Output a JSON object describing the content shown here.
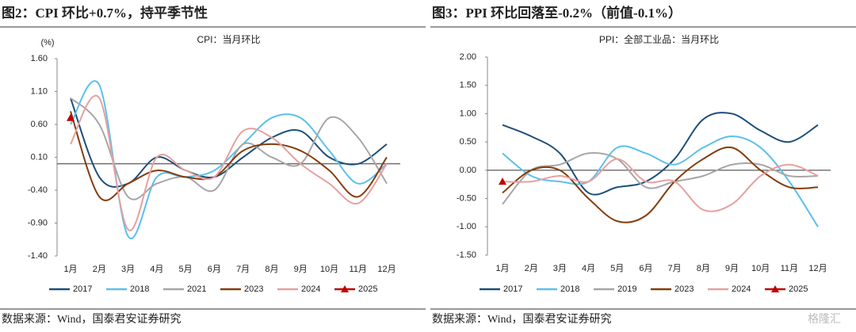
{
  "chart_data": [
    {
      "type": "line",
      "title": "图2：CPI 环比+0.7%，持平季节性",
      "subtitle": "CPI：当月环比",
      "y_label": "(%)",
      "categories": [
        "1月",
        "2月",
        "3月",
        "4月",
        "5月",
        "6月",
        "7月",
        "8月",
        "9月",
        "10月",
        "11月",
        "12月"
      ],
      "ylim": [
        -1.4,
        1.6
      ],
      "yticks": [
        {
          "value": -1.4,
          "label": "-1.40"
        },
        {
          "value": -0.9,
          "label": "-0.90"
        },
        {
          "value": -0.4,
          "label": "-0.40"
        },
        {
          "value": 0.1,
          "label": "0.10"
        },
        {
          "value": 0.6,
          "label": "0.60"
        },
        {
          "value": 1.1,
          "label": "1.10"
        },
        {
          "value": 1.6,
          "label": "1.60"
        }
      ],
      "series": [
        {
          "name": "2017",
          "color": "#1f4e79",
          "values": [
            1.0,
            -0.2,
            -0.3,
            0.1,
            -0.1,
            -0.2,
            0.1,
            0.4,
            0.5,
            0.1,
            0.0,
            0.3
          ]
        },
        {
          "name": "2018",
          "color": "#5bc0eb",
          "values": [
            0.6,
            1.2,
            -1.1,
            -0.2,
            -0.2,
            -0.1,
            0.3,
            0.7,
            0.7,
            0.2,
            -0.3,
            0.0
          ]
        },
        {
          "name": "2021",
          "color": "#a6a6a6",
          "values": [
            1.0,
            0.6,
            -0.5,
            -0.3,
            -0.2,
            -0.4,
            0.3,
            0.1,
            0.0,
            0.7,
            0.4,
            -0.3
          ]
        },
        {
          "name": "2023",
          "color": "#843c0c",
          "values": [
            0.8,
            -0.5,
            -0.3,
            -0.1,
            -0.2,
            -0.2,
            0.2,
            0.3,
            0.2,
            -0.1,
            -0.5,
            0.1
          ]
        },
        {
          "name": "2024",
          "color": "#e6a0a0",
          "values": [
            0.3,
            1.0,
            -1.0,
            0.1,
            -0.1,
            -0.2,
            0.5,
            0.4,
            0.0,
            -0.3,
            -0.6,
            0.0
          ]
        },
        {
          "name": "2025",
          "color": "#c00000",
          "marker": "triangle",
          "values": [
            0.7,
            null,
            null,
            null,
            null,
            null,
            null,
            null,
            null,
            null,
            null,
            null
          ]
        }
      ],
      "source": "数据来源：Wind，国泰君安证券研究"
    },
    {
      "type": "line",
      "title": "图3：PPI 环比回落至-0.2%（前值-0.1%）",
      "subtitle": "PPI：全部工业品：当月环比",
      "categories": [
        "1月",
        "2月",
        "3月",
        "4月",
        "5月",
        "6月",
        "7月",
        "8月",
        "9月",
        "10月",
        "11月",
        "12月"
      ],
      "ylim": [
        -1.5,
        2.0
      ],
      "yticks": [
        {
          "value": -1.5,
          "label": "-1.50"
        },
        {
          "value": -1.0,
          "label": "-1.00"
        },
        {
          "value": -0.5,
          "label": "-0.50"
        },
        {
          "value": 0,
          "label": "0.00"
        },
        {
          "value": 0.5,
          "label": "0.50"
        },
        {
          "value": 1.0,
          "label": "1.00"
        },
        {
          "value": 1.5,
          "label": "1.50"
        },
        {
          "value": 2.0,
          "label": "2.00"
        }
      ],
      "series": [
        {
          "name": "2017",
          "color": "#1f4e79",
          "values": [
            0.8,
            0.6,
            0.3,
            -0.4,
            -0.3,
            -0.2,
            0.2,
            0.9,
            1.0,
            0.7,
            0.5,
            0.8
          ]
        },
        {
          "name": "2018",
          "color": "#5bc0eb",
          "values": [
            0.3,
            -0.1,
            -0.2,
            -0.2,
            0.4,
            0.3,
            0.1,
            0.4,
            0.6,
            0.4,
            -0.2,
            -1.0
          ]
        },
        {
          "name": "2019",
          "color": "#a6a6a6",
          "values": [
            -0.6,
            0.0,
            0.1,
            0.3,
            0.2,
            -0.3,
            -0.2,
            -0.1,
            0.1,
            0.1,
            -0.1,
            -0.1
          ]
        },
        {
          "name": "2023",
          "color": "#843c0c",
          "values": [
            -0.4,
            0.0,
            0.0,
            -0.5,
            -0.9,
            -0.8,
            -0.2,
            0.2,
            0.4,
            0.0,
            -0.3,
            -0.3
          ]
        },
        {
          "name": "2024",
          "color": "#e6a0a0",
          "values": [
            -0.2,
            -0.2,
            -0.1,
            -0.2,
            0.2,
            -0.2,
            -0.2,
            -0.7,
            -0.6,
            -0.1,
            0.1,
            -0.1
          ]
        },
        {
          "name": "2025",
          "color": "#c00000",
          "marker": "triangle",
          "values": [
            -0.2,
            null,
            null,
            null,
            null,
            null,
            null,
            null,
            null,
            null,
            null,
            null
          ]
        }
      ],
      "source": "数据来源：Wind，国泰君安证券研究"
    }
  ],
  "watermark": "格隆汇"
}
